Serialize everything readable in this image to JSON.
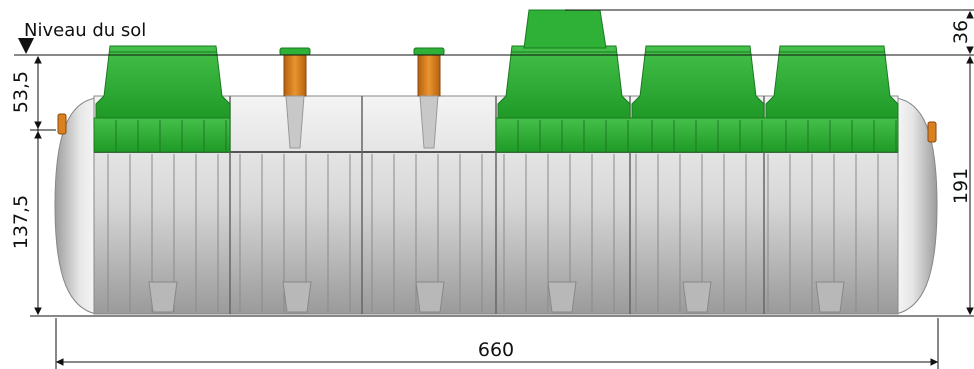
{
  "ground_level": {
    "label": "Niveau du sol"
  },
  "dimensions": {
    "upper_height": "53,5",
    "lower_height": "137,5",
    "length": "660",
    "dome_height": "36",
    "total_height": "191"
  },
  "colors": {
    "tank_body": "#d8d8d8",
    "cover": "#2fb036",
    "cover_dark": "#1e8a24",
    "pipe": "#d9801f",
    "line": "#111111"
  }
}
